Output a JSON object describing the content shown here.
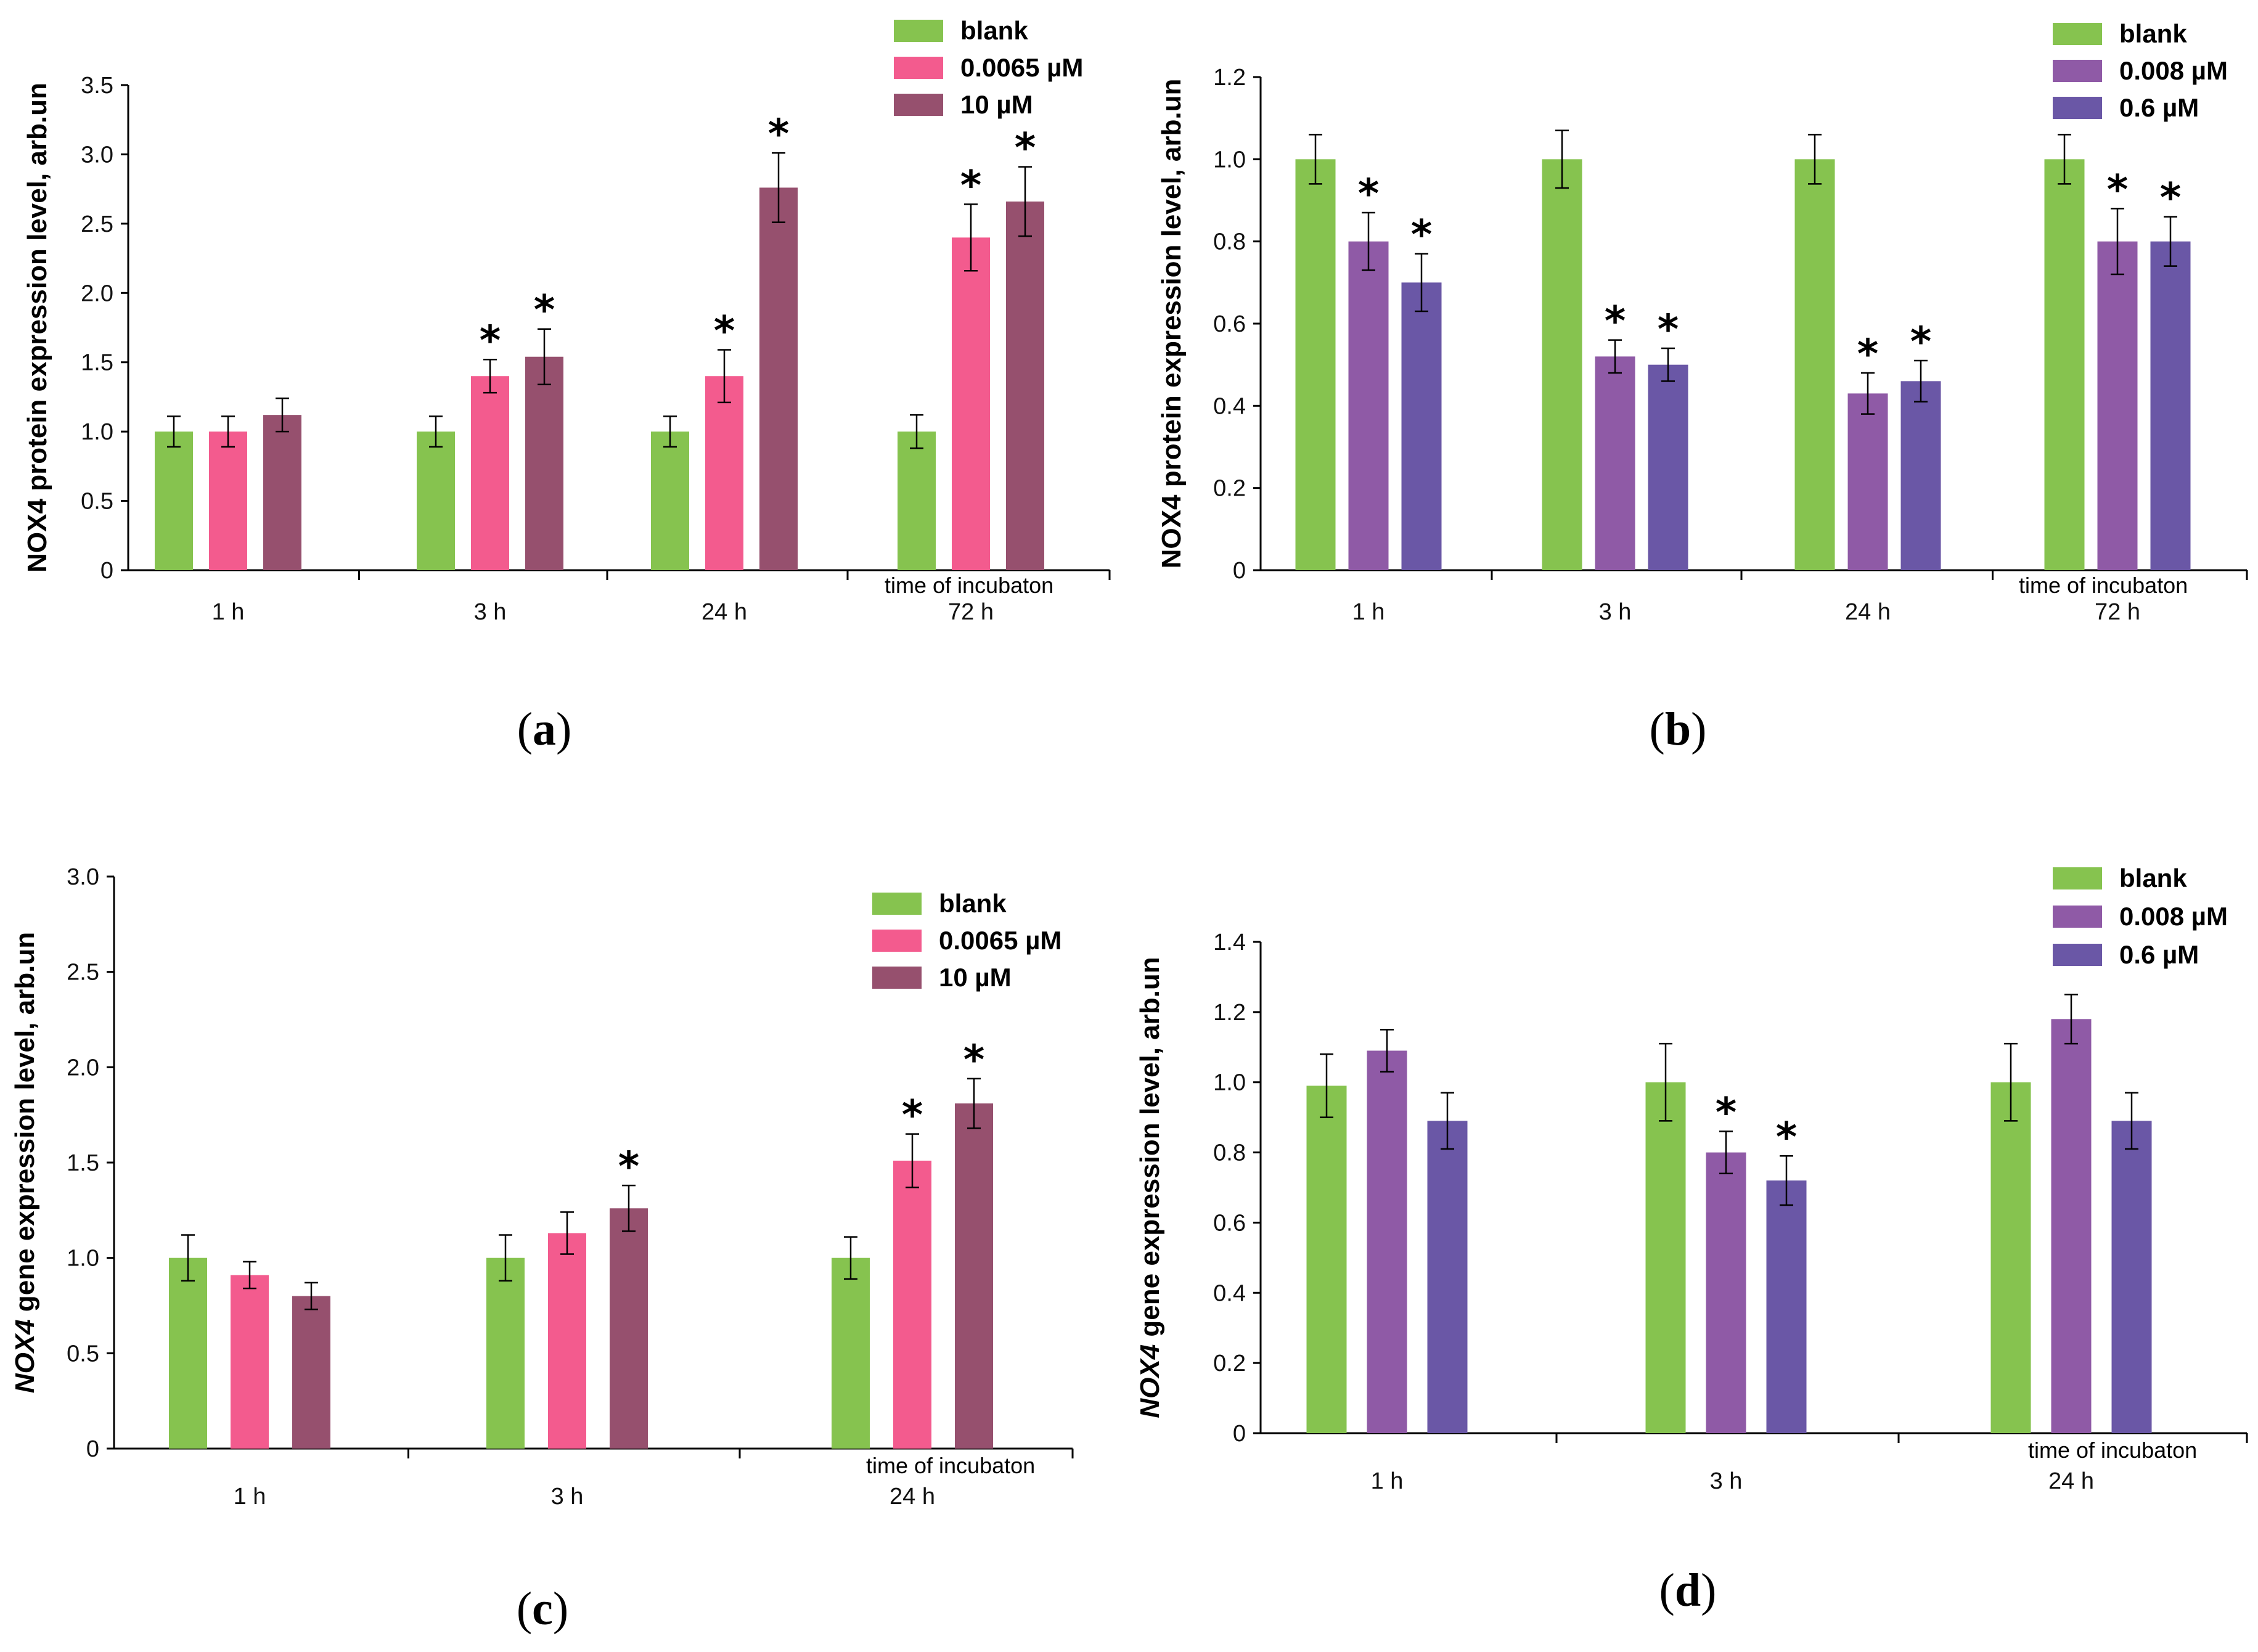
{
  "chart_data": [
    {
      "id": "a",
      "panel_label": "a",
      "type": "bar",
      "ylabel_italic": "",
      "ylabel_rest": "NOX4 protein expression level, arb.un",
      "xnote": "time of incubaton",
      "categories": [
        "1 h",
        "3 h",
        "24 h",
        "72 h"
      ],
      "ylim": [
        0,
        3.5
      ],
      "yticks": [
        0,
        0.5,
        1.0,
        1.5,
        2.0,
        2.5,
        3.0,
        3.5
      ],
      "yticklabels": [
        "0",
        "0.5",
        "1.0",
        "1.5",
        "2.0",
        "2.5",
        "3.0",
        "3.5"
      ],
      "series": [
        {
          "name": "blank",
          "color": "#86C34F",
          "values": [
            1.0,
            1.0,
            1.0,
            1.0
          ],
          "errors": [
            0.11,
            0.11,
            0.11,
            0.12
          ],
          "sig": [
            false,
            false,
            false,
            false
          ]
        },
        {
          "name": "0.0065 µM",
          "color": "#F35B8E",
          "values": [
            1.0,
            1.4,
            1.4,
            2.4
          ],
          "errors": [
            0.11,
            0.12,
            0.19,
            0.24
          ],
          "sig": [
            false,
            true,
            true,
            true
          ]
        },
        {
          "name": "10 µM",
          "color": "#96506E",
          "values": [
            1.12,
            1.54,
            2.76,
            2.66
          ],
          "errors": [
            0.12,
            0.2,
            0.25,
            0.25
          ],
          "sig": [
            false,
            true,
            true,
            true
          ]
        }
      ]
    },
    {
      "id": "b",
      "panel_label": "b",
      "type": "bar",
      "ylabel_italic": "",
      "ylabel_rest": "NOX4 protein expression level, arb.un",
      "xnote": "time of incubaton",
      "categories": [
        "1 h",
        "3 h",
        "24 h",
        "72 h"
      ],
      "ylim": [
        0,
        1.2
      ],
      "yticks": [
        0,
        0.2,
        0.4,
        0.6,
        0.8,
        1.0,
        1.2
      ],
      "yticklabels": [
        "0",
        "0.2",
        "0.4",
        "0.6",
        "0.8",
        "1.0",
        "1.2"
      ],
      "series": [
        {
          "name": "blank",
          "color": "#86C34F",
          "values": [
            1.0,
            1.0,
            1.0,
            1.0
          ],
          "errors": [
            0.06,
            0.07,
            0.06,
            0.06
          ],
          "sig": [
            false,
            false,
            false,
            false
          ]
        },
        {
          "name": "0.008 µM",
          "color": "#8F5AA6",
          "values": [
            0.8,
            0.52,
            0.43,
            0.8
          ],
          "errors": [
            0.07,
            0.04,
            0.05,
            0.08
          ],
          "sig": [
            true,
            true,
            true,
            true
          ]
        },
        {
          "name": "0.6 µM",
          "color": "#6A57A6",
          "values": [
            0.7,
            0.5,
            0.46,
            0.8
          ],
          "errors": [
            0.07,
            0.04,
            0.05,
            0.06
          ],
          "sig": [
            true,
            true,
            true,
            true
          ]
        }
      ]
    },
    {
      "id": "c",
      "panel_label": "c",
      "type": "bar",
      "ylabel_italic": "NOX4",
      "ylabel_rest": " gene expression level, arb.un",
      "xnote": "time of incubaton",
      "categories": [
        "1 h",
        "3 h",
        "24 h"
      ],
      "ylim": [
        0,
        3.0
      ],
      "yticks": [
        0,
        0.5,
        1.0,
        1.5,
        2.0,
        2.5,
        3.0
      ],
      "yticklabels": [
        "0",
        "0.5",
        "1.0",
        "1.5",
        "2.0",
        "2.5",
        "3.0"
      ],
      "series": [
        {
          "name": "blank",
          "color": "#86C34F",
          "values": [
            1.0,
            1.0,
            1.0
          ],
          "errors": [
            0.12,
            0.12,
            0.11
          ],
          "sig": [
            false,
            false,
            false
          ]
        },
        {
          "name": "0.0065 µM",
          "color": "#F35B8E",
          "values": [
            0.91,
            1.13,
            1.51
          ],
          "errors": [
            0.07,
            0.11,
            0.14
          ],
          "sig": [
            false,
            false,
            true
          ]
        },
        {
          "name": "10 µM",
          "color": "#96506E",
          "values": [
            0.8,
            1.26,
            1.81
          ],
          "errors": [
            0.07,
            0.12,
            0.13
          ],
          "sig": [
            false,
            true,
            true
          ]
        }
      ]
    },
    {
      "id": "d",
      "panel_label": "d",
      "type": "bar",
      "ylabel_italic": "NOX4",
      "ylabel_rest": " gene expression level, arb.un",
      "xnote": "time of incubaton",
      "categories": [
        "1 h",
        "3 h",
        "24 h"
      ],
      "ylim": [
        0,
        1.4
      ],
      "yticks": [
        0,
        0.2,
        0.4,
        0.6,
        0.8,
        1.0,
        1.2,
        1.4
      ],
      "yticklabels": [
        "0",
        "0.2",
        "0.4",
        "0.6",
        "0.8",
        "1.0",
        "1.2",
        "1.4"
      ],
      "series": [
        {
          "name": "blank",
          "color": "#86C34F",
          "values": [
            0.99,
            1.0,
            1.0
          ],
          "errors": [
            0.09,
            0.11,
            0.11
          ],
          "sig": [
            false,
            false,
            false
          ]
        },
        {
          "name": "0.008 µM",
          "color": "#8F5AA6",
          "values": [
            1.09,
            0.8,
            1.18
          ],
          "errors": [
            0.06,
            0.06,
            0.07
          ],
          "sig": [
            false,
            true,
            false
          ]
        },
        {
          "name": "0.6 µM",
          "color": "#6A57A6",
          "values": [
            0.89,
            0.72,
            0.89
          ],
          "errors": [
            0.08,
            0.07,
            0.08
          ],
          "sig": [
            false,
            true,
            false
          ]
        }
      ]
    }
  ],
  "significance_marker": "*",
  "colors": {
    "axis": "#000000",
    "background": "#ffffff"
  }
}
